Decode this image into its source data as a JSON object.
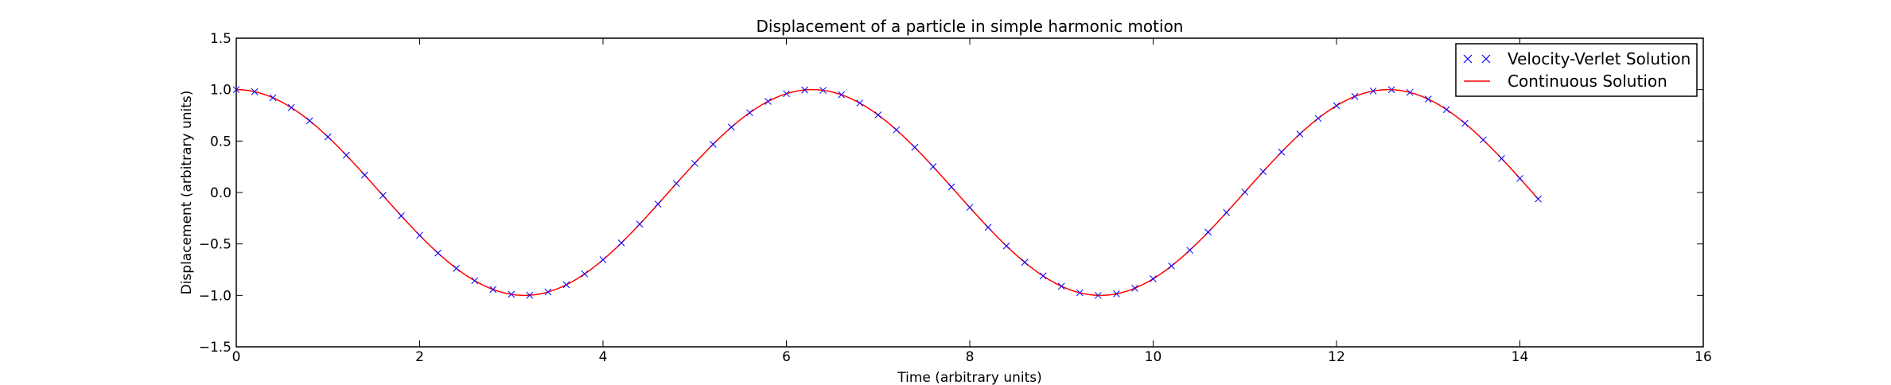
{
  "chart_data": {
    "type": "line",
    "title": "Displacement of a particle in simple harmonic motion",
    "xlabel": "Time (arbitrary units)",
    "ylabel": "Displacement (arbitrary units)",
    "xlim": [
      0,
      16
    ],
    "ylim": [
      -1.5,
      1.5
    ],
    "xticks": [
      0,
      2,
      4,
      6,
      8,
      10,
      12,
      14,
      16
    ],
    "yticks": [
      -1.5,
      -1.0,
      -0.5,
      0.0,
      0.5,
      1.0,
      1.5
    ],
    "xtick_labels": [
      "0",
      "2",
      "4",
      "6",
      "8",
      "10",
      "12",
      "14",
      "16"
    ],
    "ytick_labels": [
      "−1.5",
      "−1.0",
      "−0.5",
      "0.0",
      "0.5",
      "1.0",
      "1.5"
    ],
    "grid": false,
    "legend_position": "top-right",
    "series": [
      {
        "name": "Velocity-Verlet Solution",
        "style": "markers",
        "marker": "x",
        "color": "#0000ff",
        "function": "cos(t)",
        "t_start": 0,
        "t_end": 14.2,
        "t_step": 0.2
      },
      {
        "name": "Continuous Solution",
        "style": "line",
        "color": "#ff0000",
        "function": "cos(t)",
        "t_start": 0,
        "t_end": 14.2
      }
    ]
  }
}
